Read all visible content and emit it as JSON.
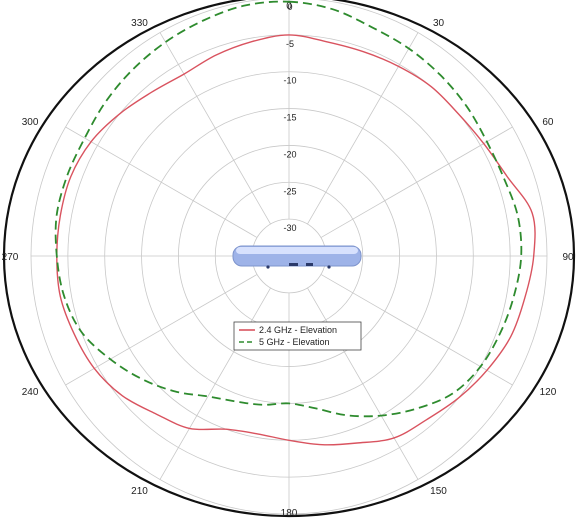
{
  "chart_data": {
    "type": "polar-line",
    "title": "",
    "angular_ticks": [
      "0",
      "30",
      "60",
      "90",
      "120",
      "150",
      "180",
      "210",
      "240",
      "270",
      "300",
      "330"
    ],
    "radial_ticks": [
      "0",
      "-5",
      "-10",
      "-15",
      "-20",
      "-25",
      "-30"
    ],
    "r_range_db": [
      -35,
      0
    ],
    "grid": true,
    "legend_position": "center",
    "series": [
      {
        "name": "2.4 GHz - Elevation",
        "color": "#d9535f",
        "style": "solid",
        "angles": [
          0,
          10,
          20,
          30,
          40,
          50,
          60,
          70,
          80,
          90,
          100,
          110,
          120,
          130,
          140,
          150,
          160,
          170,
          180,
          190,
          200,
          210,
          220,
          230,
          240,
          250,
          260,
          270,
          280,
          290,
          300,
          310,
          320,
          330,
          340,
          350
        ],
        "gain_db": [
          -5,
          -5.5,
          -5.5,
          -5.3,
          -5,
          -5,
          -4.5,
          -3.5,
          -1.5,
          -1.8,
          -2.5,
          -3,
          -4,
          -5,
          -6,
          -6.5,
          -8,
          -9,
          -10,
          -10.5,
          -10,
          -8,
          -7,
          -5.5,
          -4.5,
          -4,
          -3.5,
          -3.5,
          -3.5,
          -3.5,
          -4,
          -5,
          -6,
          -6.5,
          -6,
          -5.5
        ]
      },
      {
        "name": "5 GHz - Elevation",
        "color": "#2e8b2e",
        "style": "dashed",
        "angles": [
          0,
          10,
          20,
          30,
          40,
          50,
          60,
          70,
          80,
          90,
          100,
          110,
          120,
          130,
          140,
          150,
          160,
          170,
          180,
          190,
          200,
          210,
          220,
          230,
          240,
          250,
          260,
          270,
          280,
          290,
          300,
          310,
          320,
          330,
          340,
          350
        ],
        "gain_db": [
          -0.5,
          -1,
          -2,
          -2.5,
          -3,
          -3.5,
          -4,
          -4,
          -3.5,
          -3.5,
          -4,
          -4.5,
          -5,
          -6,
          -8,
          -10,
          -12,
          -14,
          -15,
          -14.5,
          -14,
          -13,
          -11,
          -9,
          -7,
          -5,
          -4,
          -3.5,
          -3,
          -3,
          -3,
          -2.5,
          -2,
          -1.5,
          -1,
          -0.5
        ]
      }
    ]
  },
  "colors": {
    "outer_ring": "#111111",
    "grid": "#c8c8c8",
    "device_body": "#9eb3e8"
  },
  "device_icon": "access-point-device"
}
